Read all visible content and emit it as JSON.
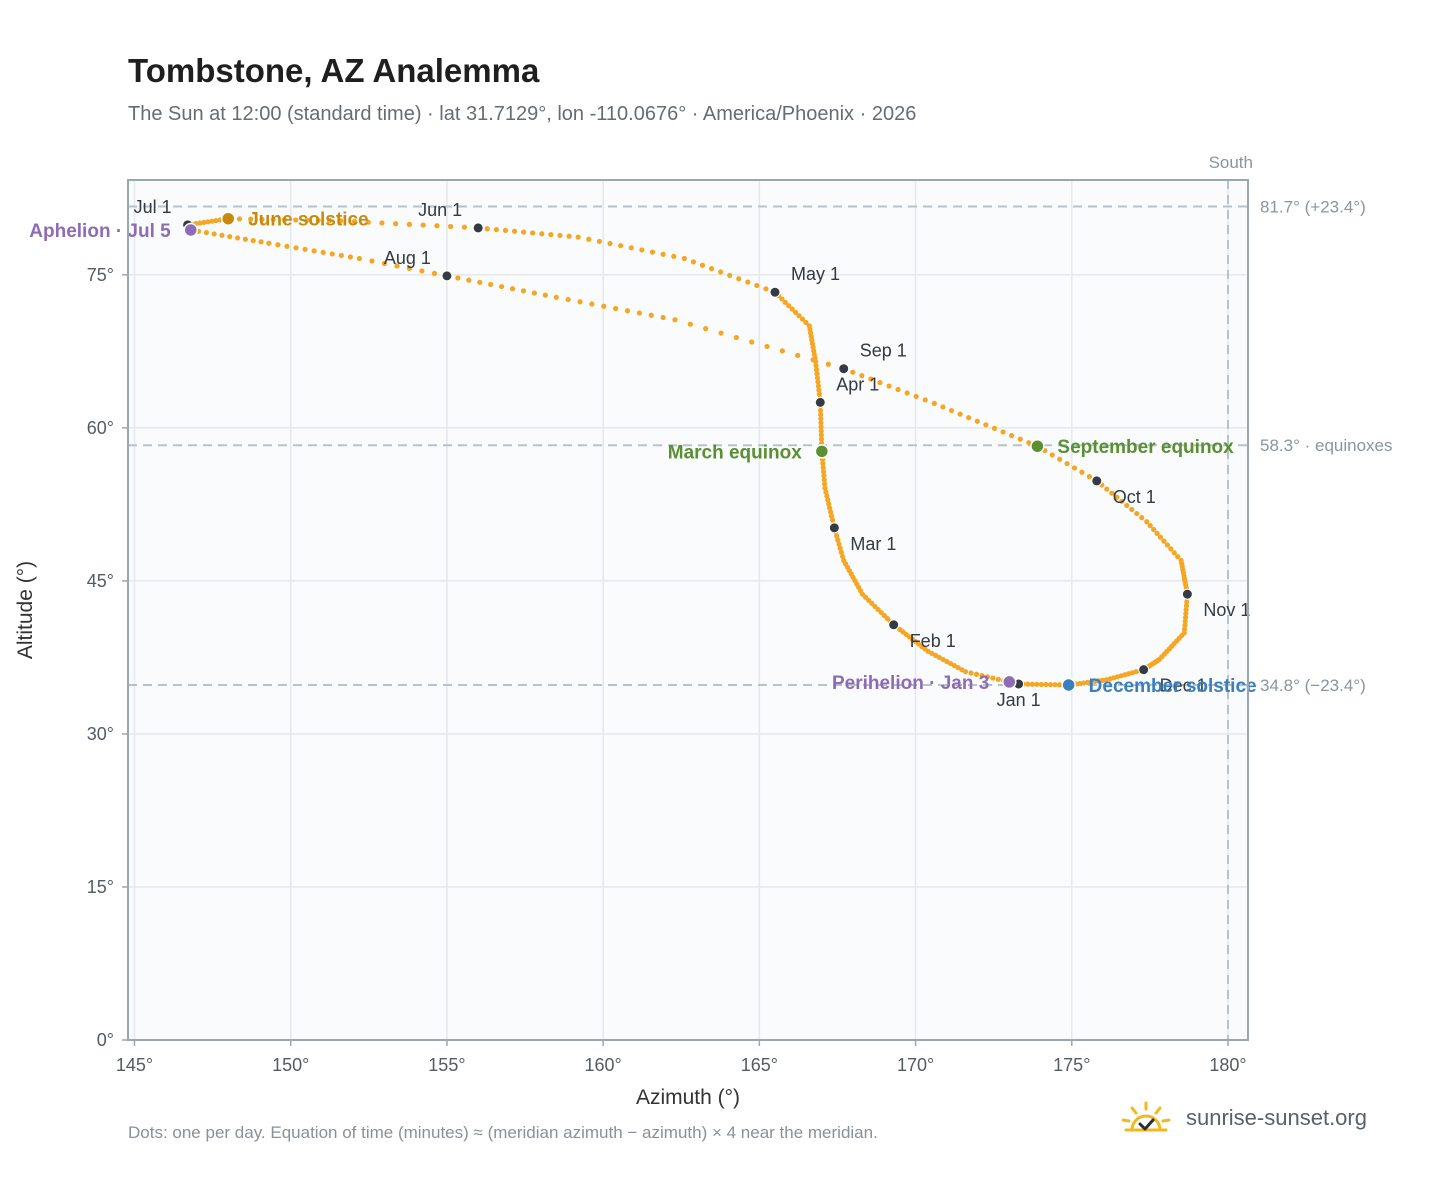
{
  "title": "Tombstone, AZ Analemma",
  "subtitle": "The Sun at 12:00 (standard time) · lat 31.7129°, lon -110.0676° · America/Phoenix · 2026",
  "footer_note": "Dots: one per day. Equation of time (minutes) ≈ (meridian azimuth − azimuth) × 4 near the meridian.",
  "brand": {
    "name": "sunrise-sunset.org",
    "icon": "sun-check-logo"
  },
  "colors": {
    "curve": "#f5a623",
    "month_marker": "#353b44",
    "solstice_june": "#c98a0c",
    "solstice_december": "#3a7ebf",
    "equinox": "#5a8f32",
    "apsis": "#8e6bb5",
    "guide_line": "#b8c2cb",
    "plot_bg": "#f9fbfd"
  },
  "chart_data": {
    "type": "scatter",
    "xlabel": "Azimuth (°)",
    "ylabel": "Altitude (°)",
    "xlim": [
      145,
      180
    ],
    "ylim": [
      0,
      85
    ],
    "xticks": [
      145,
      150,
      155,
      160,
      165,
      170,
      175,
      180
    ],
    "xtick_labels": [
      "145°",
      "150°",
      "155°",
      "160°",
      "165°",
      "170°",
      "175°",
      "180°"
    ],
    "yticks": [
      0,
      15,
      30,
      45,
      60,
      75
    ],
    "ytick_labels": [
      "0°",
      "15°",
      "30°",
      "45°",
      "60°",
      "75°"
    ],
    "grid": true,
    "south_line": {
      "x": 180,
      "label": "South"
    },
    "reference_lines": [
      {
        "y": 81.7,
        "label": "81.7° (+23.4°)"
      },
      {
        "y": 58.3,
        "label": "58.3° · equinoxes"
      },
      {
        "y": 34.8,
        "label": "34.8° (−23.4°)"
      }
    ],
    "analemma_anchors": [
      {
        "day": 1,
        "az": 173.3,
        "alt": 34.9
      },
      {
        "day": 3,
        "az": 173.0,
        "alt": 35.1
      },
      {
        "day": 11,
        "az": 171.6,
        "alt": 36.1
      },
      {
        "day": 21,
        "az": 170.4,
        "alt": 38.1
      },
      {
        "day": 32,
        "az": 169.3,
        "alt": 40.7
      },
      {
        "day": 42,
        "az": 168.3,
        "alt": 43.7
      },
      {
        "day": 52,
        "az": 167.7,
        "alt": 47.0
      },
      {
        "day": 60,
        "az": 167.4,
        "alt": 50.2
      },
      {
        "day": 70,
        "az": 167.1,
        "alt": 54.1
      },
      {
        "day": 79,
        "az": 167.0,
        "alt": 57.7
      },
      {
        "day": 91,
        "az": 166.95,
        "alt": 62.5
      },
      {
        "day": 101,
        "az": 166.8,
        "alt": 66.5
      },
      {
        "day": 111,
        "az": 166.6,
        "alt": 70.0
      },
      {
        "day": 121,
        "az": 165.5,
        "alt": 73.3
      },
      {
        "day": 131,
        "az": 162.6,
        "alt": 76.6
      },
      {
        "day": 141,
        "az": 159.2,
        "alt": 78.7
      },
      {
        "day": 152,
        "az": 156.0,
        "alt": 79.6
      },
      {
        "day": 162,
        "az": 151.6,
        "alt": 80.3
      },
      {
        "day": 172,
        "az": 148.0,
        "alt": 80.5
      },
      {
        "day": 182,
        "az": 146.7,
        "alt": 79.9
      },
      {
        "day": 186,
        "az": 146.8,
        "alt": 79.4
      },
      {
        "day": 196,
        "az": 149.3,
        "alt": 78.1
      },
      {
        "day": 206,
        "az": 152.2,
        "alt": 76.6
      },
      {
        "day": 213,
        "az": 155.0,
        "alt": 74.9
      },
      {
        "day": 223,
        "az": 158.5,
        "alt": 72.8
      },
      {
        "day": 233,
        "az": 162.3,
        "alt": 70.6
      },
      {
        "day": 244,
        "az": 167.7,
        "alt": 65.8
      },
      {
        "day": 254,
        "az": 170.6,
        "alt": 62.4
      },
      {
        "day": 266,
        "az": 173.9,
        "alt": 58.2
      },
      {
        "day": 274,
        "az": 175.8,
        "alt": 54.8
      },
      {
        "day": 284,
        "az": 177.4,
        "alt": 50.8
      },
      {
        "day": 294,
        "az": 178.5,
        "alt": 47.0
      },
      {
        "day": 305,
        "az": 178.7,
        "alt": 43.7
      },
      {
        "day": 315,
        "az": 178.6,
        "alt": 39.9
      },
      {
        "day": 325,
        "az": 177.8,
        "alt": 37.3
      },
      {
        "day": 335,
        "az": 177.3,
        "alt": 36.3
      },
      {
        "day": 345,
        "az": 176.1,
        "alt": 35.3
      },
      {
        "day": 355,
        "az": 174.9,
        "alt": 34.8
      },
      {
        "day": 366,
        "az": 173.3,
        "alt": 34.9
      }
    ],
    "month_markers": [
      {
        "label": "Jan 1",
        "az": 173.3,
        "alt": 34.9,
        "anchor": "below"
      },
      {
        "label": "Feb 1",
        "az": 169.3,
        "alt": 40.7,
        "anchor": "below-right"
      },
      {
        "label": "Mar 1",
        "az": 167.4,
        "alt": 50.2,
        "anchor": "below-right"
      },
      {
        "label": "Apr 1",
        "az": 166.95,
        "alt": 62.5,
        "anchor": "above-right"
      },
      {
        "label": "May 1",
        "az": 165.5,
        "alt": 73.3,
        "anchor": "above-right"
      },
      {
        "label": "Jun 1",
        "az": 156.0,
        "alt": 79.6,
        "anchor": "above-left"
      },
      {
        "label": "Jul 1",
        "az": 146.7,
        "alt": 79.9,
        "anchor": "above-left"
      },
      {
        "label": "Aug 1",
        "az": 155.0,
        "alt": 74.9,
        "anchor": "above-left"
      },
      {
        "label": "Sep 1",
        "az": 167.7,
        "alt": 65.8,
        "anchor": "above-right"
      },
      {
        "label": "Oct 1",
        "az": 175.8,
        "alt": 54.8,
        "anchor": "below-right"
      },
      {
        "label": "Nov 1",
        "az": 178.7,
        "alt": 43.7,
        "anchor": "below-right"
      },
      {
        "label": "Dec 1",
        "az": 177.3,
        "alt": 36.3,
        "anchor": "below-right"
      }
    ],
    "events": [
      {
        "label": "June solstice",
        "az": 148.0,
        "alt": 80.5,
        "color": "#c98a0c",
        "anchor": "right"
      },
      {
        "label": "Aphelion · Jul 5",
        "az": 146.8,
        "alt": 79.4,
        "color": "#8e6bb5",
        "anchor": "left"
      },
      {
        "label": "March equinox",
        "az": 167.0,
        "alt": 57.7,
        "color": "#5a8f32",
        "anchor": "left"
      },
      {
        "label": "September equinox",
        "az": 173.9,
        "alt": 58.2,
        "color": "#5a8f32",
        "anchor": "right"
      },
      {
        "label": "Perihelion · Jan 3",
        "az": 173.0,
        "alt": 35.1,
        "color": "#8e6bb5",
        "anchor": "left"
      },
      {
        "label": "December solstice",
        "az": 174.9,
        "alt": 34.8,
        "color": "#3a7ebf",
        "anchor": "right"
      }
    ]
  }
}
